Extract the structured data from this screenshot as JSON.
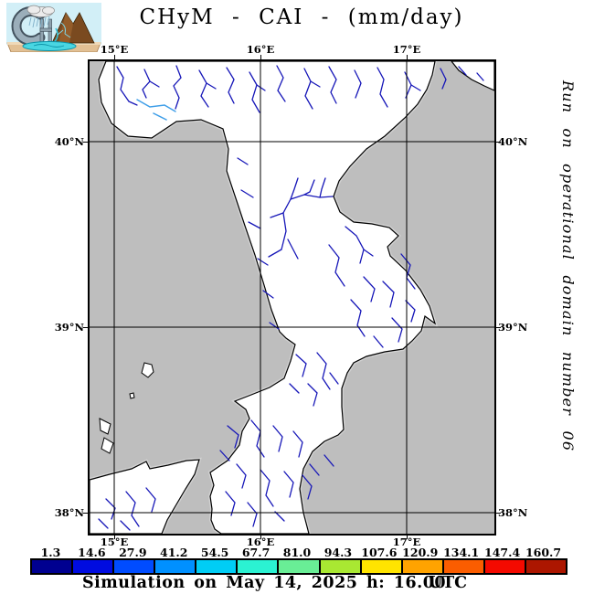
{
  "title": "CHyM - CAI - (mm/day)",
  "logo": {
    "name": "CHyM model logo"
  },
  "side_note": "Run on operational domain number 06",
  "map": {
    "lon_labels": [
      "15°E",
      "16°E",
      "17°E"
    ],
    "lat_labels": [
      "40°N",
      "39°N",
      "38°N"
    ],
    "sea_color": "#BEBEBE",
    "land_color": "#FFFFFF",
    "coast_color": "#000000",
    "coast_fringe_color": "#D2D2D2",
    "river_color": "#1616B8",
    "river_highlight_color": "#3E9EE8",
    "grid_color": "#000000"
  },
  "colorbar": {
    "entries": [
      {
        "label": "1.3",
        "color": "#000090"
      },
      {
        "label": "14.6",
        "color": "#000CE0"
      },
      {
        "label": "27.9",
        "color": "#004CFF"
      },
      {
        "label": "41.2",
        "color": "#0090FF"
      },
      {
        "label": "54.5",
        "color": "#00CDF5"
      },
      {
        "label": "67.7",
        "color": "#2BF2D2"
      },
      {
        "label": "81.0",
        "color": "#69EE96"
      },
      {
        "label": "94.3",
        "color": "#A9E832"
      },
      {
        "label": "107.6",
        "color": "#FFE400"
      },
      {
        "label": "120.9",
        "color": "#FFA300"
      },
      {
        "label": "134.1",
        "color": "#FB5D00"
      },
      {
        "label": "147.4",
        "color": "#F40A00"
      },
      {
        "label": "160.7",
        "color": "#AC1600"
      }
    ]
  },
  "caption": {
    "text": "Simulation on May 14, 2025 h: 16.00",
    "utc": "UTC"
  }
}
